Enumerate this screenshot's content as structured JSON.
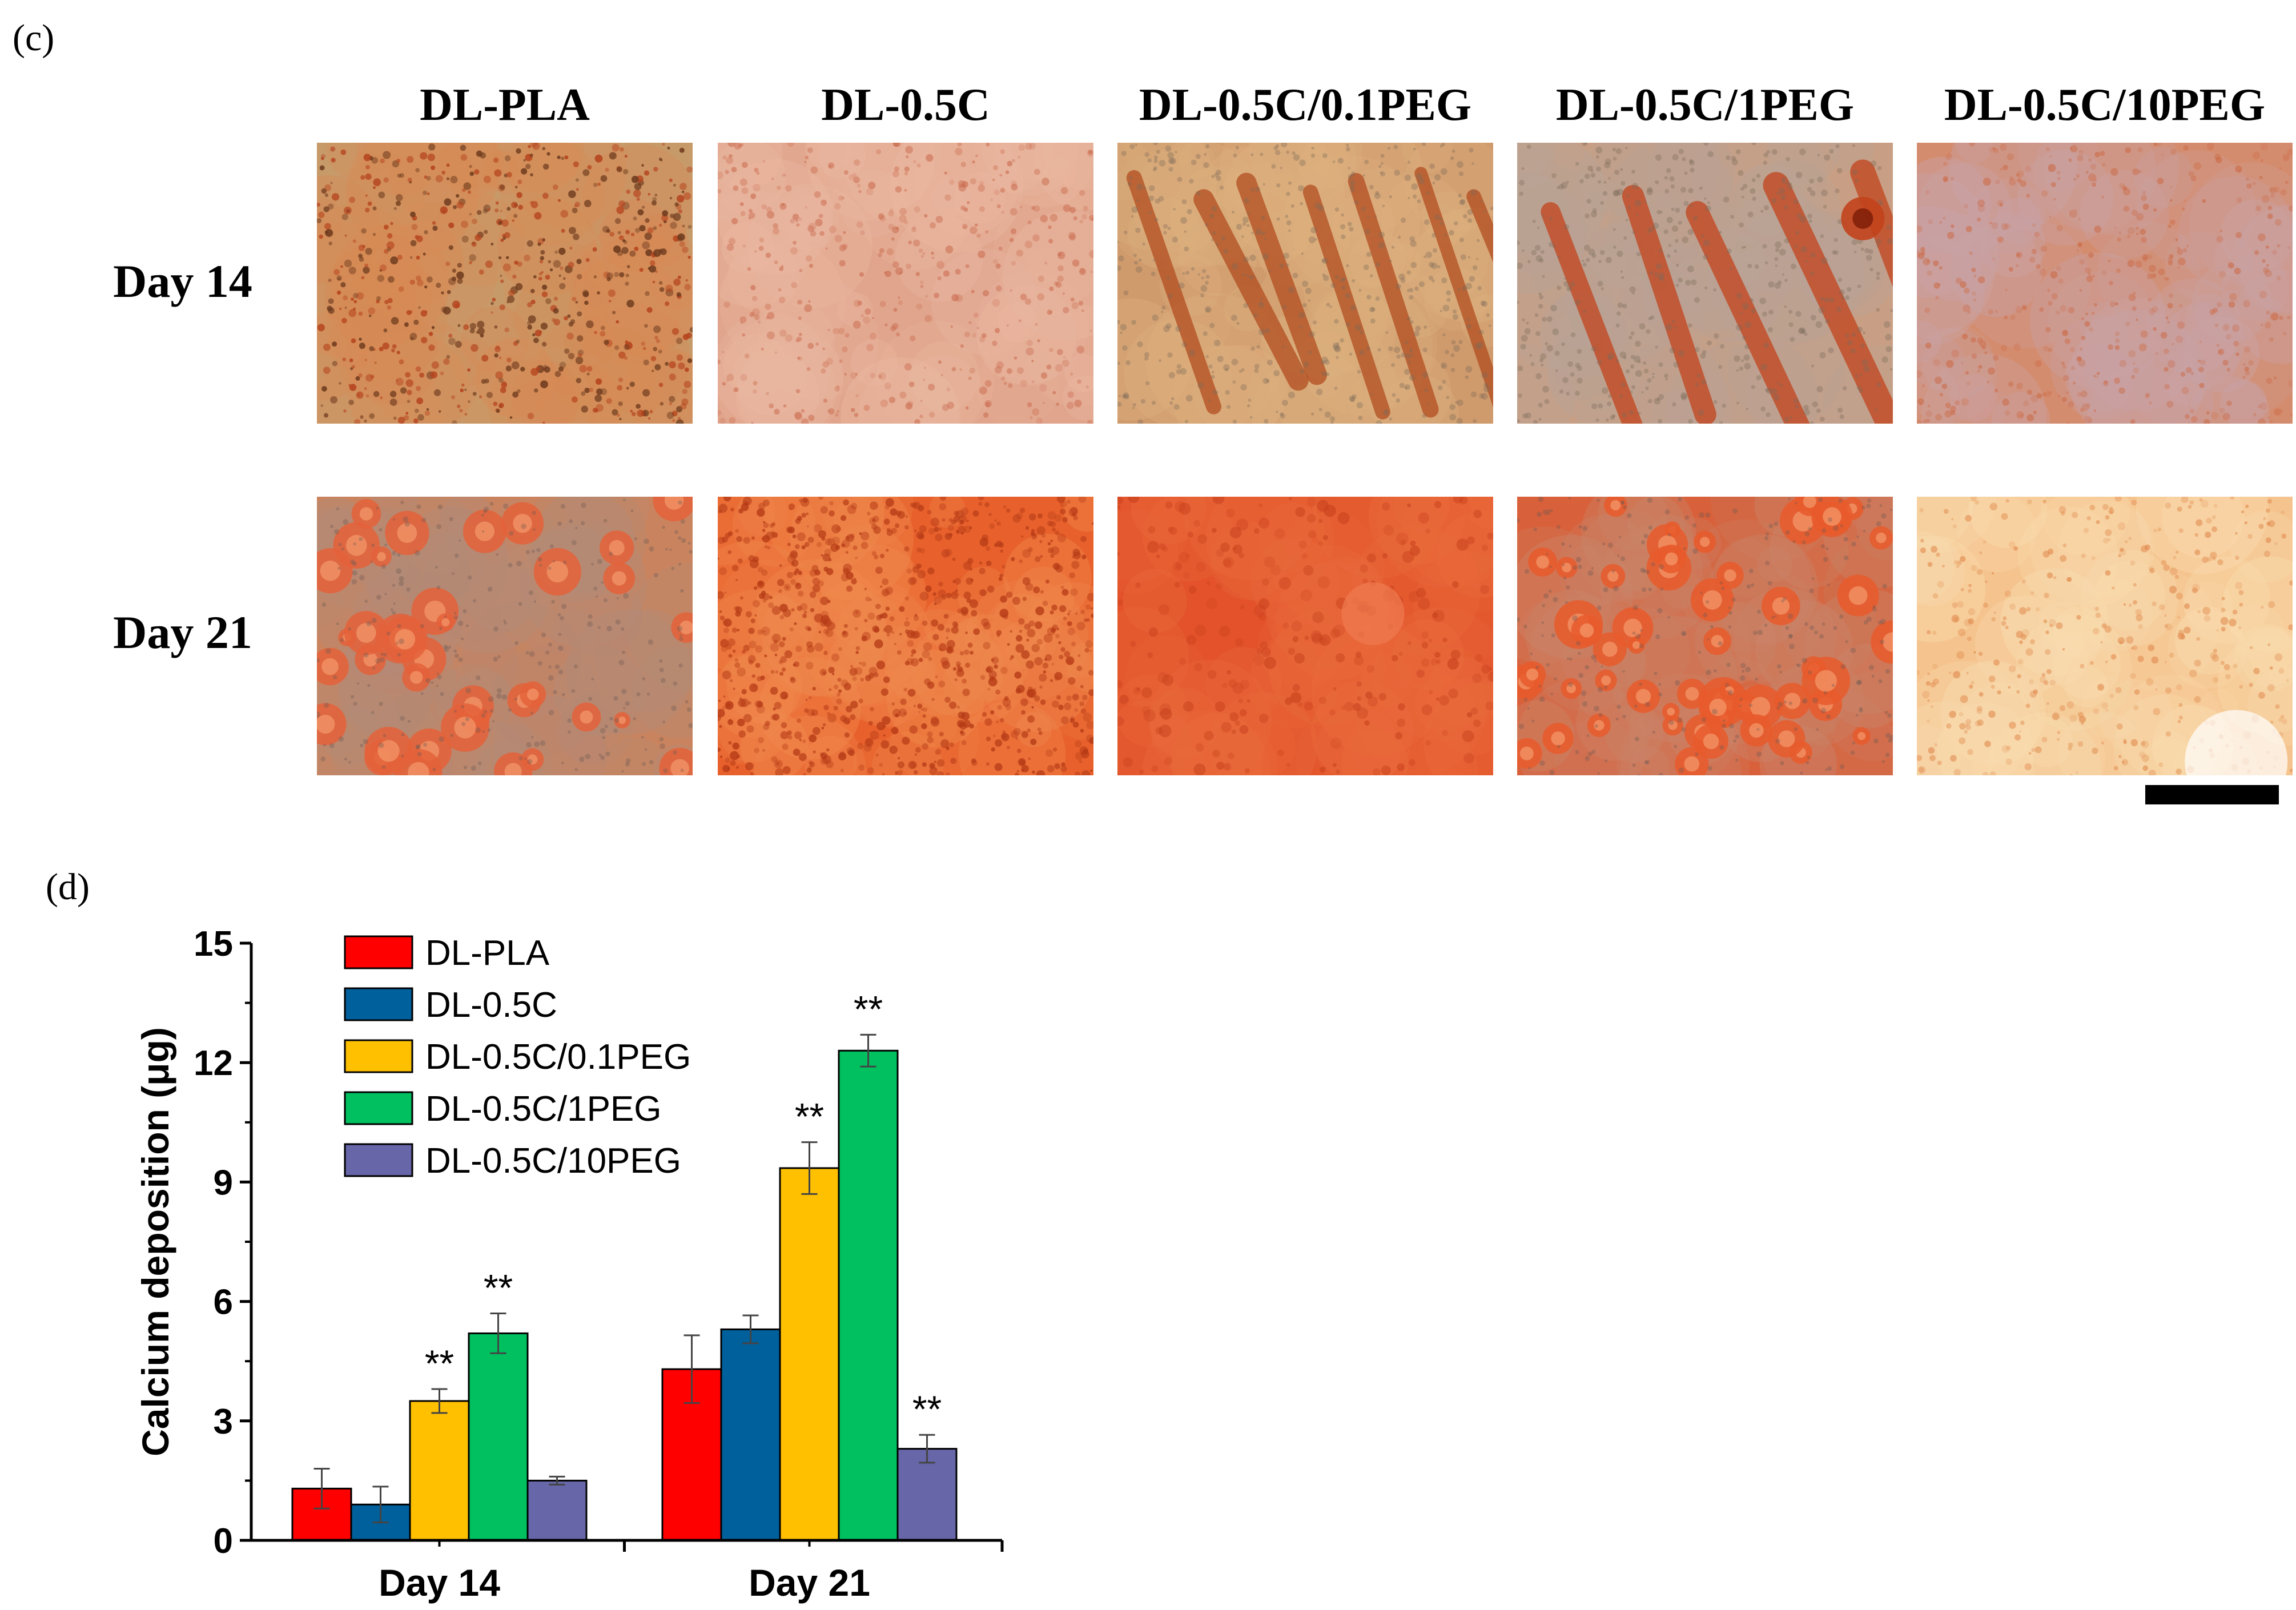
{
  "panel_c": {
    "label": "(c)",
    "columns": [
      "DL-PLA",
      "DL-0.5C",
      "DL-0.5C/0.1PEG",
      "DL-0.5C/1PEG",
      "DL-0.5C/10PEG"
    ],
    "rows": [
      "Day 14",
      "Day 21"
    ],
    "micrographs": [
      [
        {
          "name": "micrograph-day14-dl-pla",
          "base": "#c79a6a",
          "mid": "#d88a55",
          "spot": "#b5441e",
          "pattern": "speckle"
        },
        {
          "name": "micrograph-day14-dl-05c",
          "base": "#e0a58c",
          "mid": "#eab7a0",
          "spot": "#c9694d",
          "pattern": "mottle"
        },
        {
          "name": "micrograph-day14-dl-05c-01peg",
          "base": "#cf9a6c",
          "mid": "#ddb07e",
          "spot": "#b24d20",
          "pattern": "streaks"
        },
        {
          "name": "micrograph-day14-dl-05c-1peg",
          "base": "#c89f84",
          "mid": "#b9a396",
          "spot": "#c2431c",
          "pattern": "streaks-bold"
        },
        {
          "name": "micrograph-day14-dl-05c-10peg",
          "base": "#d48c6e",
          "mid": "#c9a3a6",
          "spot": "#cc6a45",
          "pattern": "haze"
        }
      ],
      [
        {
          "name": "micrograph-day21-dl-pla",
          "base": "#c9845f",
          "mid": "#b38b78",
          "spot": "#e4623a",
          "pattern": "nodules"
        },
        {
          "name": "micrograph-day21-dl-05c",
          "base": "#e8612c",
          "mid": "#f08a4e",
          "spot": "#b53a16",
          "pattern": "dense"
        },
        {
          "name": "micrograph-day21-dl-05c-01peg",
          "base": "#e3522a",
          "mid": "#e96b3c",
          "spot": "#c7401c",
          "pattern": "smooth"
        },
        {
          "name": "micrograph-day21-dl-05c-1peg",
          "base": "#d8603a",
          "mid": "#c9856a",
          "spot": "#e85a2c",
          "pattern": "nodules-dense"
        },
        {
          "name": "micrograph-day21-dl-05c-10peg",
          "base": "#f5c48e",
          "mid": "#f9dcb0",
          "spot": "#e0874a",
          "pattern": "pale"
        }
      ]
    ],
    "scale_bar_color": "#000000"
  },
  "panel_d": {
    "label": "(d)",
    "colors": [
      "#ff0000",
      "#00609c",
      "#ffc000",
      "#00c060",
      "#6666a8"
    ]
  },
  "chart_data": {
    "type": "bar",
    "title": "",
    "categories": [
      "Day 14",
      "Day 21"
    ],
    "series": [
      {
        "name": "DL-PLA",
        "values": [
          1.3,
          4.3
        ],
        "errors": [
          0.5,
          0.85
        ],
        "significance": [
          "",
          ""
        ]
      },
      {
        "name": "DL-0.5C",
        "values": [
          0.9,
          5.3
        ],
        "errors": [
          0.45,
          0.35
        ],
        "significance": [
          "",
          ""
        ]
      },
      {
        "name": "DL-0.5C/0.1PEG",
        "values": [
          3.5,
          9.35
        ],
        "errors": [
          0.3,
          0.65
        ],
        "significance": [
          "**",
          "**"
        ]
      },
      {
        "name": "DL-0.5C/1PEG",
        "values": [
          5.2,
          12.3
        ],
        "errors": [
          0.5,
          0.4
        ],
        "significance": [
          "**",
          "**"
        ]
      },
      {
        "name": "DL-0.5C/10PEG",
        "values": [
          1.5,
          2.3
        ],
        "errors": [
          0.1,
          0.35
        ],
        "significance": [
          "",
          "**"
        ]
      }
    ],
    "xlabel": "",
    "ylabel": "Calcium deposition (μg)",
    "ylim": [
      0,
      15
    ],
    "yticks": [
      "0",
      "3",
      "6",
      "9",
      "12",
      "15"
    ],
    "grid": false,
    "legend": "top-left"
  }
}
